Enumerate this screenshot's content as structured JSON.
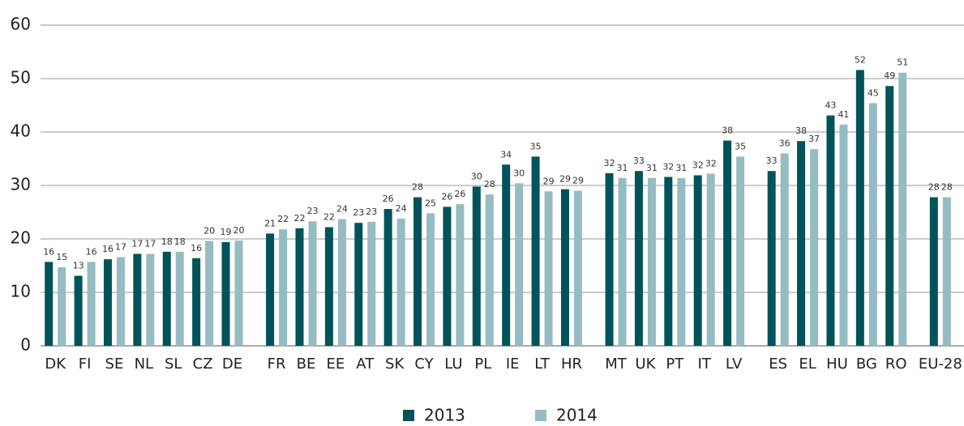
{
  "chart_data": {
    "type": "bar",
    "categories": [
      "DK",
      "FI",
      "SE",
      "NL",
      "SL",
      "CZ",
      "DE",
      null,
      "FR",
      "BE",
      "EE",
      "AT",
      "SK",
      "CY",
      "LU",
      "PL",
      "IE",
      "LT",
      "HR",
      null,
      "MT",
      "UK",
      "PT",
      "IT",
      "LV",
      null,
      "ES",
      "EL",
      "HU",
      "BG",
      "RO",
      null,
      "EU-28"
    ],
    "series": [
      {
        "name": "2013",
        "color": "#00535a",
        "values": [
          15.7,
          13.1,
          16.2,
          17.2,
          17.6,
          16.4,
          19.4,
          null,
          21.0,
          22.0,
          22.2,
          23.0,
          25.6,
          27.8,
          26.0,
          29.8,
          33.9,
          35.4,
          29.3,
          null,
          32.3,
          32.7,
          31.6,
          31.9,
          38.4,
          null,
          32.7,
          38.3,
          43.1,
          51.6,
          48.6,
          null,
          27.8
        ],
        "value_labels": [
          "16",
          "13",
          "16",
          "17",
          "18",
          "16",
          "19",
          null,
          "21",
          "22",
          "22",
          "23",
          "26",
          "28",
          "26",
          "30",
          "34",
          "35",
          "29",
          null,
          "32",
          "33",
          "32",
          "32",
          "38",
          null,
          "33",
          "38",
          "43",
          "52",
          "49",
          null,
          "28"
        ]
      },
      {
        "name": "2014",
        "color": "#94bcc2",
        "values": [
          14.7,
          15.7,
          16.6,
          17.2,
          17.6,
          19.6,
          19.7,
          null,
          21.8,
          23.3,
          23.7,
          23.2,
          23.8,
          24.8,
          26.5,
          28.3,
          30.4,
          28.9,
          29.0,
          null,
          31.4,
          31.4,
          31.4,
          32.2,
          35.4,
          null,
          36.0,
          36.8,
          41.4,
          45.4,
          51.1,
          null,
          27.8
        ],
        "value_labels": [
          "15",
          "16",
          "17",
          "17",
          "18",
          "20",
          "20",
          null,
          "22",
          "23",
          "24",
          "23",
          "24",
          "25",
          "26",
          "28",
          "30",
          "29",
          "29",
          null,
          "31",
          "31",
          "31",
          "32",
          "35",
          null,
          "36",
          "37",
          "41",
          "45",
          "51",
          null,
          "28"
        ]
      }
    ],
    "ylim": [
      0,
      60
    ],
    "yticks": [
      0,
      10,
      20,
      30,
      40,
      50,
      60
    ],
    "grid": true
  }
}
